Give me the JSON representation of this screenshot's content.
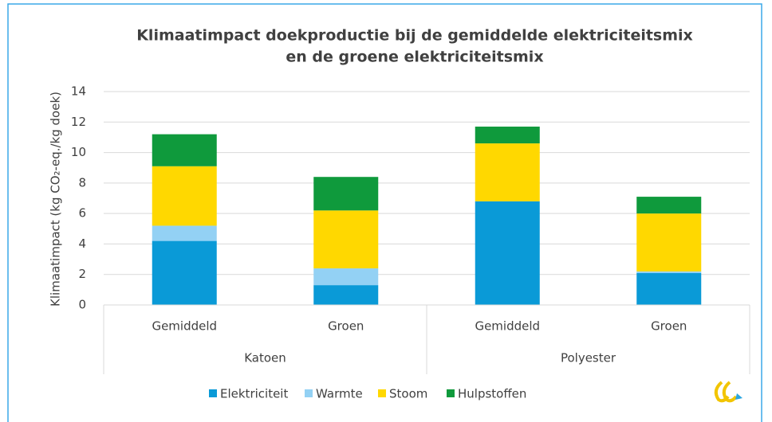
{
  "chart_data": {
    "type": "stacked_bar",
    "title": [
      "Klimaatimpact doekproductie bij de gemiddelde elektriciteitsmix",
      "en de groene elektriciteitsmix"
    ],
    "y_label": "Klimaatimpact (kg CO₂-eq./kg doek)",
    "groups": [
      {
        "name": "Katoen",
        "categories": [
          "Gemiddeld",
          "Groen"
        ]
      },
      {
        "name": "Polyester",
        "categories": [
          "Gemiddeld",
          "Groen"
        ]
      }
    ],
    "series": [
      {
        "name": "Elektriciteit",
        "color": "#0a9ad7",
        "values": [
          4.2,
          1.3,
          6.8,
          2.1
        ]
      },
      {
        "name": "Warmte",
        "color": "#93d1f4",
        "values": [
          1.0,
          1.1,
          0,
          0.1
        ]
      },
      {
        "name": "Stoom",
        "color": "#ffd800",
        "values": [
          3.9,
          3.8,
          3.8,
          3.8
        ]
      },
      {
        "name": "Hulpstoffen",
        "color": "#0f9a3c",
        "values": [
          2.1,
          2.2,
          1.1,
          1.1
        ]
      }
    ],
    "ylim": [
      0,
      14
    ],
    "yticks": [
      0,
      2,
      4,
      6,
      8,
      10,
      12,
      14
    ],
    "grid": true,
    "legend": "bottom"
  }
}
